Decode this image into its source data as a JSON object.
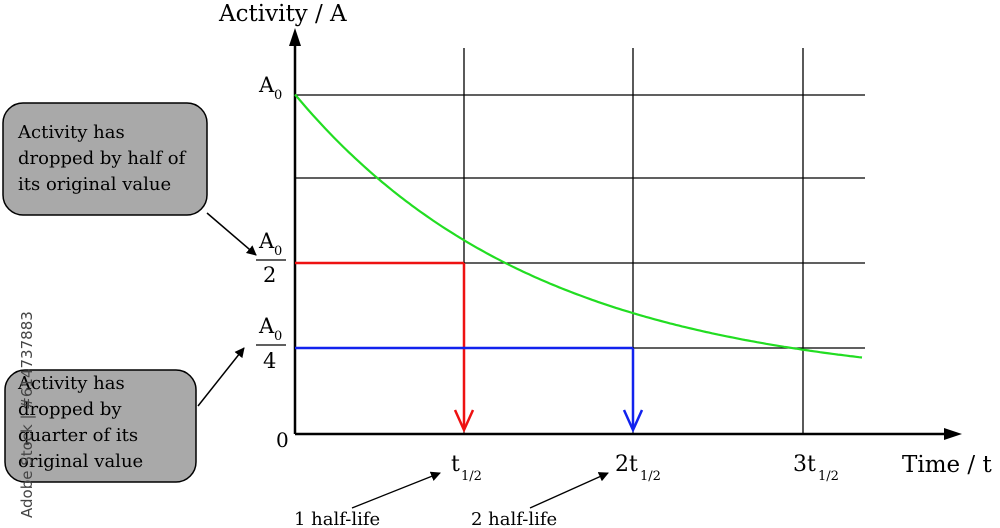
{
  "axes": {
    "y_label": "Activity / A",
    "x_label": "Time / t",
    "origin_label": "0"
  },
  "y_ticks": {
    "a0_main": "A",
    "a0_sub": "0",
    "half_num_main": "A",
    "half_num_sub": "0",
    "half_den": "2",
    "quarter_num_main": "A",
    "quarter_num_sub": "0",
    "quarter_den": "4"
  },
  "x_ticks": {
    "t1_main": "t",
    "t1_sub": "1/2",
    "t2_main": "2t",
    "t2_sub": "1/2",
    "t3_main": "3t",
    "t3_sub": "1/2"
  },
  "callouts": {
    "half": [
      "Activity has",
      "dropped by half of",
      "its original value"
    ],
    "quarter": [
      "Activity has",
      "dropped by",
      "quarter  of its",
      "original value"
    ]
  },
  "half_life_labels": {
    "one": "1 half-life",
    "two": "2 half-life"
  },
  "watermark": {
    "side_text": "Adobe Stock | #614737883"
  },
  "colors": {
    "curve": "#22dd22",
    "half": "#ee1111",
    "quarter": "#1122ee",
    "callout_fill": "#a9a9a9"
  }
}
